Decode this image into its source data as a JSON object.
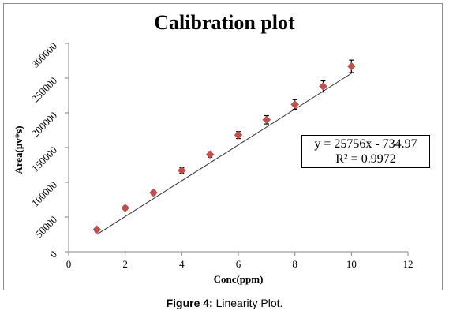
{
  "chart_data": {
    "type": "scatter",
    "title": "Calibration plot",
    "xlabel": "Conc(ppm)",
    "ylabel": "Area(μv*s)",
    "xlim": [
      0,
      12
    ],
    "ylim": [
      0,
      300000
    ],
    "xticks": [
      0,
      2,
      4,
      6,
      8,
      10,
      12
    ],
    "yticks": [
      0,
      50000,
      100000,
      150000,
      200000,
      250000,
      300000
    ],
    "grid": false,
    "marker_color": "#c0504d",
    "series": [
      {
        "x": [
          1,
          2,
          3,
          4,
          5,
          6,
          7,
          8,
          9,
          10
        ],
        "y": [
          32000,
          63000,
          85000,
          117000,
          140000,
          168000,
          190000,
          212000,
          238000,
          267000
        ],
        "error": [
          2500,
          2500,
          3000,
          4000,
          4000,
          5000,
          6000,
          7000,
          8000,
          9000
        ]
      }
    ],
    "trendline": {
      "slope": 25756,
      "intercept": -734.97,
      "equation": "y = 25756x - 734.97",
      "r_squared": "R² = 0.9972"
    }
  },
  "caption": {
    "label": "Figure 4:",
    "text": " Linearity Plot."
  }
}
